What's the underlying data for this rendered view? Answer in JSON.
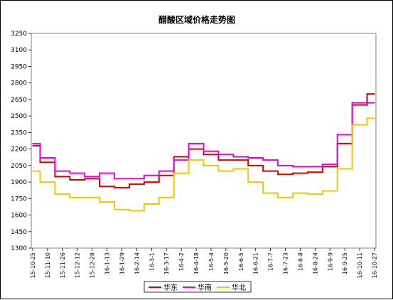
{
  "chart_data": {
    "type": "line",
    "title": "醋酸区域价格走势图",
    "xlabel": "",
    "ylabel": "",
    "ylim": [
      1300,
      3250
    ],
    "yticks": [
      1300,
      1450,
      1600,
      1750,
      1900,
      2050,
      2200,
      2350,
      2500,
      2650,
      2800,
      2950,
      3100,
      3250
    ],
    "grid": false,
    "legend": "bottom",
    "categories": [
      "15-10-25",
      "15-11-10",
      "15-11-26",
      "15-12-12",
      "15-12-28",
      "16-1-13",
      "16-1-29",
      "16-2-14",
      "16-3-1",
      "16-3-17",
      "16-4-2",
      "16-4-18",
      "16-5-4",
      "16-5-20",
      "16-6-5",
      "16-6-21",
      "16-7-7",
      "16-7-23",
      "16-8-8",
      "16-8-24",
      "16-9-9",
      "16-9-25",
      "16-10-11",
      "16-10-27"
    ],
    "series": [
      {
        "name": "华东",
        "color": "#dd0000",
        "values": [
          2230,
          2080,
          1950,
          1920,
          1930,
          1860,
          1850,
          1880,
          1900,
          1960,
          2130,
          2200,
          2150,
          2100,
          2100,
          2050,
          2000,
          1970,
          1980,
          1990,
          2040,
          2250,
          2600,
          2700
        ]
      },
      {
        "name": "华南",
        "color": "#e800e8",
        "values": [
          2250,
          2120,
          2000,
          1980,
          1950,
          1980,
          1930,
          1930,
          1960,
          2000,
          2100,
          2250,
          2180,
          2150,
          2130,
          2120,
          2100,
          2050,
          2040,
          2040,
          2060,
          2330,
          2620,
          2620
        ]
      },
      {
        "name": "华北",
        "color": "#f0c800",
        "values": [
          2000,
          1900,
          1790,
          1760,
          1760,
          1720,
          1650,
          1640,
          1700,
          1760,
          1980,
          2100,
          2050,
          2000,
          2020,
          1900,
          1800,
          1760,
          1800,
          1790,
          1820,
          2020,
          2420,
          2480
        ]
      }
    ]
  }
}
